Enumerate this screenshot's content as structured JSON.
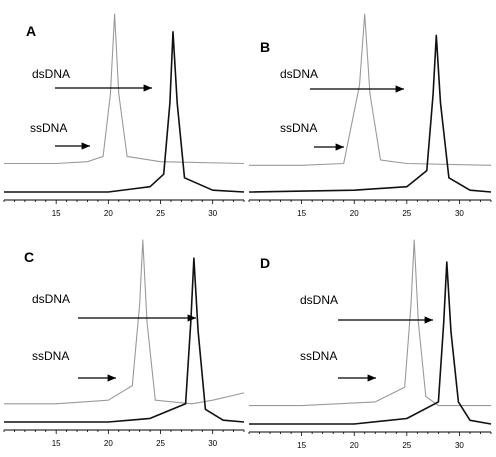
{
  "panels_common": {
    "ssdna_label": "ssDNA",
    "dsdna_label": "dsDNA",
    "xlim": [
      10,
      33
    ],
    "xticks": [
      15,
      20,
      25,
      30
    ],
    "trace_colors": {
      "ssDNA": "#9a9a9a",
      "dsDNA": "#111111"
    }
  },
  "chart_data": [
    {
      "type": "line",
      "panel_label": "A",
      "xlabel": "",
      "ylabel": "",
      "xlim": [
        10,
        33
      ],
      "xticks": [
        15,
        20,
        25,
        30
      ],
      "series": [
        {
          "name": "ssDNA",
          "peak_x": 20.6,
          "baseline": 0.16,
          "peak_height": 1.0,
          "x": [
            10,
            15,
            18,
            19.5,
            20.2,
            20.6,
            21.0,
            21.8,
            25,
            33
          ],
          "y": [
            0.16,
            0.16,
            0.17,
            0.2,
            0.55,
            1.0,
            0.55,
            0.2,
            0.17,
            0.16
          ]
        },
        {
          "name": "dsDNA",
          "peak_x": 26.2,
          "baseline": 0.0,
          "peak_height": 0.9,
          "x": [
            10,
            20,
            24,
            25.3,
            25.9,
            26.2,
            26.6,
            27.3,
            30,
            33
          ],
          "y": [
            0.0,
            0.0,
            0.03,
            0.1,
            0.5,
            0.9,
            0.5,
            0.08,
            0.01,
            0.0
          ]
        }
      ]
    },
    {
      "type": "line",
      "panel_label": "B",
      "xlabel": "",
      "ylabel": "",
      "xlim": [
        10,
        33
      ],
      "xticks": [
        15,
        20,
        25,
        30
      ],
      "series": [
        {
          "name": "ssDNA",
          "peak_x": 21.0,
          "baseline": 0.15,
          "peak_height": 1.0,
          "x": [
            10,
            15,
            19,
            20.5,
            21.0,
            21.5,
            22.5,
            25,
            33
          ],
          "y": [
            0.15,
            0.15,
            0.16,
            0.6,
            1.0,
            0.55,
            0.18,
            0.16,
            0.15
          ]
        },
        {
          "name": "dsDNA",
          "peak_x": 27.8,
          "baseline": 0.0,
          "peak_height": 0.88,
          "x": [
            10,
            20,
            25,
            26.9,
            27.5,
            27.8,
            28.2,
            29,
            31,
            33
          ],
          "y": [
            0.0,
            0.01,
            0.03,
            0.12,
            0.55,
            0.88,
            0.5,
            0.08,
            0.01,
            0.0
          ]
        }
      ]
    },
    {
      "type": "line",
      "panel_label": "C",
      "xlabel": "",
      "ylabel": "",
      "xlim": [
        10,
        33
      ],
      "xticks": [
        15,
        20,
        25,
        30
      ],
      "series": [
        {
          "name": "ssDNA",
          "peak_x": 23.3,
          "baseline": 0.1,
          "peak_height": 1.0,
          "x": [
            10,
            15,
            20,
            22.3,
            23.0,
            23.3,
            23.7,
            24.5,
            28,
            30,
            33
          ],
          "y": [
            0.1,
            0.1,
            0.12,
            0.2,
            0.65,
            1.0,
            0.55,
            0.12,
            0.1,
            0.12,
            0.16
          ]
        },
        {
          "name": "dsDNA",
          "peak_x": 28.2,
          "baseline": 0.0,
          "peak_height": 0.9,
          "x": [
            10,
            20,
            24,
            27.4,
            27.9,
            28.2,
            28.6,
            29.3,
            31,
            33
          ],
          "y": [
            0.0,
            0.0,
            0.02,
            0.1,
            0.55,
            0.9,
            0.5,
            0.07,
            0.01,
            0.0
          ]
        }
      ]
    },
    {
      "type": "line",
      "panel_label": "D",
      "xlabel": "",
      "ylabel": "",
      "xlim": [
        10,
        33
      ],
      "xticks": [
        15,
        20,
        25,
        30
      ],
      "series": [
        {
          "name": "ssDNA",
          "peak_x": 25.7,
          "baseline": 0.1,
          "peak_height": 1.0,
          "x": [
            10,
            15,
            22,
            24.8,
            25.4,
            25.7,
            26.1,
            26.8,
            28,
            30,
            33
          ],
          "y": [
            0.1,
            0.1,
            0.12,
            0.2,
            0.65,
            1.0,
            0.55,
            0.15,
            0.1,
            0.1,
            0.1
          ]
        },
        {
          "name": "dsDNA",
          "peak_x": 28.8,
          "baseline": 0.0,
          "peak_height": 0.88,
          "x": [
            10,
            20,
            25,
            28.0,
            28.5,
            28.8,
            29.2,
            29.9,
            31,
            33
          ],
          "y": [
            0.0,
            0.0,
            0.03,
            0.12,
            0.55,
            0.88,
            0.5,
            0.12,
            0.02,
            0.0
          ]
        }
      ]
    }
  ]
}
